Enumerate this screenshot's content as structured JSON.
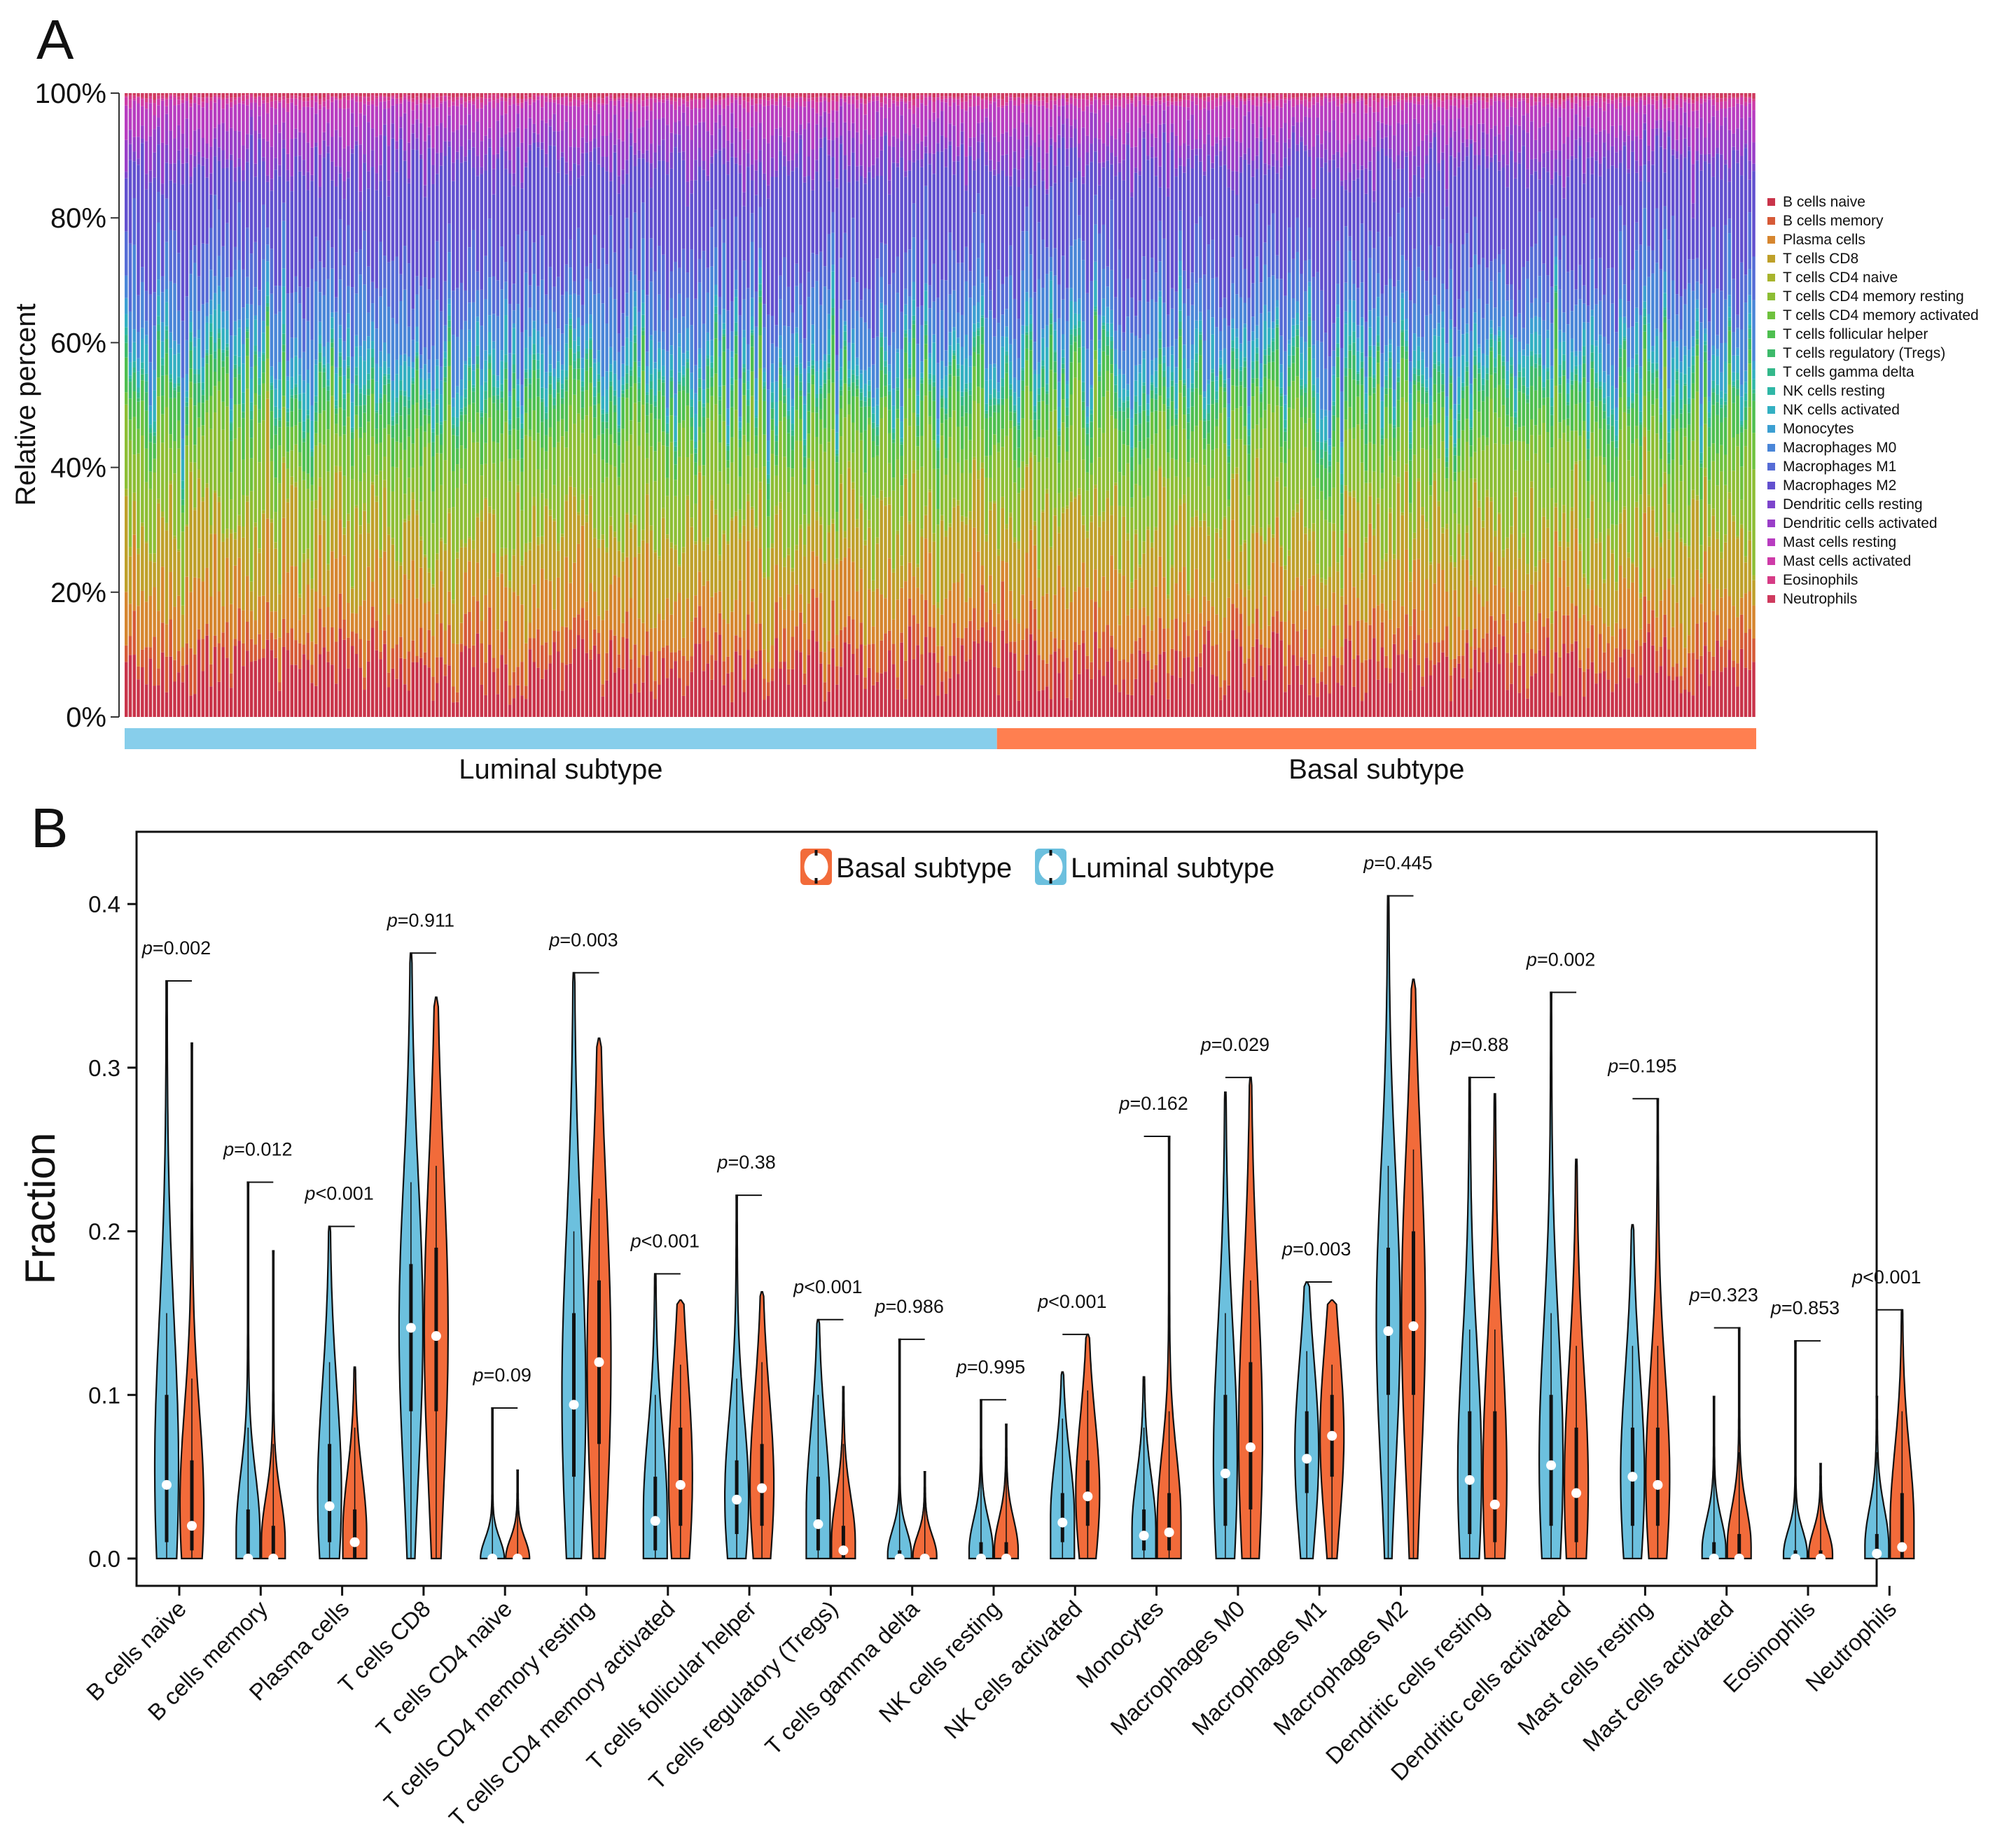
{
  "chart_data": [
    {
      "panel": "A",
      "type": "bar",
      "stacked": true,
      "ylabel": "Relative percent",
      "y_ticks": [
        "0%",
        "20%",
        "40%",
        "60%",
        "80%",
        "100%"
      ],
      "ylim": [
        0,
        100
      ],
      "n_samples": 404,
      "groups": [
        {
          "name": "Luminal subtype",
          "n": 216,
          "color": "#87CEEB"
        },
        {
          "name": "Basal subtype",
          "n": 188,
          "color": "#FF7F50"
        }
      ],
      "cell_types": [
        {
          "name": "B cells naive",
          "color": "#C9344A",
          "mean": 8
        },
        {
          "name": "B cells memory",
          "color": "#D65A37",
          "mean": 4
        },
        {
          "name": "Plasma cells",
          "color": "#D6862F",
          "mean": 8
        },
        {
          "name": "T cells CD8",
          "color": "#BFA02A",
          "mean": 10
        },
        {
          "name": "T cells CD4 naive",
          "color": "#A8B42D",
          "mean": 1
        },
        {
          "name": "T cells CD4 memory resting",
          "color": "#8DBE34",
          "mean": 12
        },
        {
          "name": "T cells CD4 memory activated",
          "color": "#6FC23E",
          "mean": 4
        },
        {
          "name": "T cells follicular helper",
          "color": "#4EBF4F",
          "mean": 4
        },
        {
          "name": "T cells regulatory (Tregs)",
          "color": "#3DBA6A",
          "mean": 2
        },
        {
          "name": "T cells gamma delta",
          "color": "#33B88A",
          "mean": 1
        },
        {
          "name": "NK cells resting",
          "color": "#2FB7A6",
          "mean": 1
        },
        {
          "name": "NK cells activated",
          "color": "#33B0C2",
          "mean": 3
        },
        {
          "name": "Monocytes",
          "color": "#3C9FD2",
          "mean": 2
        },
        {
          "name": "Macrophages M0",
          "color": "#4A86D8",
          "mean": 7
        },
        {
          "name": "Macrophages M1",
          "color": "#566CD6",
          "mean": 7
        },
        {
          "name": "Macrophages M2",
          "color": "#6250CF",
          "mean": 15
        },
        {
          "name": "Dendritic cells resting",
          "color": "#7D45CC",
          "mean": 2
        },
        {
          "name": "Dendritic cells activated",
          "color": "#9A3EC8",
          "mean": 4
        },
        {
          "name": "Mast cells resting",
          "color": "#B83CC0",
          "mean": 4
        },
        {
          "name": "Mast cells activated",
          "color": "#CE3BA8",
          "mean": 1
        },
        {
          "name": "Eosinophils",
          "color": "#D63C86",
          "mean": 0.5
        },
        {
          "name": "Neutrophils",
          "color": "#CF3A5E",
          "mean": 0.5
        }
      ]
    },
    {
      "panel": "B",
      "type": "violin",
      "ylabel": "Fraction",
      "ylim": [
        0,
        0.43
      ],
      "y_ticks": [
        "0.0",
        "0.1",
        "0.2",
        "0.3",
        "0.4"
      ],
      "legend": [
        {
          "name": "Basal subtype",
          "color": "#F26B3A"
        },
        {
          "name": "Luminal subtype",
          "color": "#6CC0DE"
        }
      ],
      "legend_position": "top-center",
      "categories": [
        {
          "name": "B cells naive",
          "p_op": "=",
          "p_val": "0.002",
          "luminal": {
            "median": 0.045,
            "max": 0.353,
            "q1": 0.01,
            "q3": 0.1
          },
          "basal": {
            "median": 0.02,
            "max": 0.315,
            "q1": 0.005,
            "q3": 0.06
          }
        },
        {
          "name": "B cells memory",
          "p_op": "=",
          "p_val": "0.012",
          "luminal": {
            "median": 0.0,
            "max": 0.23,
            "q1": 0.0,
            "q3": 0.03
          },
          "basal": {
            "median": 0.0,
            "max": 0.188,
            "q1": 0.0,
            "q3": 0.02
          }
        },
        {
          "name": "Plasma cells",
          "p_op": "<",
          "p_val": "0.001",
          "luminal": {
            "median": 0.032,
            "max": 0.203,
            "q1": 0.01,
            "q3": 0.07
          },
          "basal": {
            "median": 0.01,
            "max": 0.117,
            "q1": 0.0,
            "q3": 0.03
          }
        },
        {
          "name": "T cells CD8",
          "p_op": "=",
          "p_val": "0.911",
          "luminal": {
            "median": 0.141,
            "max": 0.37,
            "q1": 0.09,
            "q3": 0.18
          },
          "basal": {
            "median": 0.136,
            "max": 0.343,
            "q1": 0.09,
            "q3": 0.19
          }
        },
        {
          "name": "T cells CD4 naive",
          "p_op": "=",
          "p_val": "0.09",
          "luminal": {
            "median": 0.0,
            "max": 0.092,
            "q1": 0.0,
            "q3": 0.0
          },
          "basal": {
            "median": 0.0,
            "max": 0.054,
            "q1": 0.0,
            "q3": 0.0
          }
        },
        {
          "name": "T cells CD4 memory resting",
          "p_op": "=",
          "p_val": "0.003",
          "luminal": {
            "median": 0.094,
            "max": 0.358,
            "q1": 0.05,
            "q3": 0.15
          },
          "basal": {
            "median": 0.12,
            "max": 0.318,
            "q1": 0.07,
            "q3": 0.17
          }
        },
        {
          "name": "T cells CD4 memory activated",
          "p_op": "<",
          "p_val": "0.001",
          "luminal": {
            "median": 0.023,
            "max": 0.174,
            "q1": 0.005,
            "q3": 0.05
          },
          "basal": {
            "median": 0.045,
            "max": 0.158,
            "q1": 0.02,
            "q3": 0.08
          }
        },
        {
          "name": "T cells follicular helper",
          "p_op": "=",
          "p_val": "0.38",
          "luminal": {
            "median": 0.036,
            "max": 0.222,
            "q1": 0.015,
            "q3": 0.06
          },
          "basal": {
            "median": 0.043,
            "max": 0.163,
            "q1": 0.02,
            "q3": 0.07
          }
        },
        {
          "name": "T cells regulatory (Tregs)",
          "p_op": "<",
          "p_val": "0.001",
          "luminal": {
            "median": 0.021,
            "max": 0.146,
            "q1": 0.005,
            "q3": 0.05
          },
          "basal": {
            "median": 0.005,
            "max": 0.105,
            "q1": 0.0,
            "q3": 0.02
          }
        },
        {
          "name": "T cells gamma delta",
          "p_op": "=",
          "p_val": "0.986",
          "luminal": {
            "median": 0.0,
            "max": 0.134,
            "q1": 0.0,
            "q3": 0.005
          },
          "basal": {
            "median": 0.0,
            "max": 0.053,
            "q1": 0.0,
            "q3": 0.003
          }
        },
        {
          "name": "NK cells resting",
          "p_op": "=",
          "p_val": "0.995",
          "luminal": {
            "median": 0.0,
            "max": 0.097,
            "q1": 0.0,
            "q3": 0.01
          },
          "basal": {
            "median": 0.0,
            "max": 0.082,
            "q1": 0.0,
            "q3": 0.01
          }
        },
        {
          "name": "NK cells activated",
          "p_op": "<",
          "p_val": "0.001",
          "luminal": {
            "median": 0.022,
            "max": 0.114,
            "q1": 0.01,
            "q3": 0.04
          },
          "basal": {
            "median": 0.038,
            "max": 0.137,
            "q1": 0.02,
            "q3": 0.06
          }
        },
        {
          "name": "Monocytes",
          "p_op": "=",
          "p_val": "0.162",
          "luminal": {
            "median": 0.014,
            "max": 0.111,
            "q1": 0.005,
            "q3": 0.03
          },
          "basal": {
            "median": 0.016,
            "max": 0.258,
            "q1": 0.005,
            "q3": 0.04
          }
        },
        {
          "name": "Macrophages M0",
          "p_op": "=",
          "p_val": "0.029",
          "luminal": {
            "median": 0.052,
            "max": 0.285,
            "q1": 0.02,
            "q3": 0.1
          },
          "basal": {
            "median": 0.068,
            "max": 0.294,
            "q1": 0.03,
            "q3": 0.12
          }
        },
        {
          "name": "Macrophages M1",
          "p_op": "=",
          "p_val": "0.003",
          "luminal": {
            "median": 0.061,
            "max": 0.169,
            "q1": 0.04,
            "q3": 0.09
          },
          "basal": {
            "median": 0.075,
            "max": 0.158,
            "q1": 0.05,
            "q3": 0.1
          }
        },
        {
          "name": "Macrophages M2",
          "p_op": "=",
          "p_val": "0.445",
          "luminal": {
            "median": 0.139,
            "max": 0.405,
            "q1": 0.1,
            "q3": 0.19
          },
          "basal": {
            "median": 0.142,
            "max": 0.354,
            "q1": 0.1,
            "q3": 0.2
          }
        },
        {
          "name": "Dendritic cells resting",
          "p_op": "=",
          "p_val": "0.88",
          "luminal": {
            "median": 0.048,
            "max": 0.294,
            "q1": 0.015,
            "q3": 0.09
          },
          "basal": {
            "median": 0.033,
            "max": 0.284,
            "q1": 0.01,
            "q3": 0.09
          }
        },
        {
          "name": "Dendritic cells activated",
          "p_op": "=",
          "p_val": "0.002",
          "luminal": {
            "median": 0.057,
            "max": 0.346,
            "q1": 0.02,
            "q3": 0.1
          },
          "basal": {
            "median": 0.04,
            "max": 0.244,
            "q1": 0.01,
            "q3": 0.08
          }
        },
        {
          "name": "Mast cells resting",
          "p_op": "=",
          "p_val": "0.195",
          "luminal": {
            "median": 0.05,
            "max": 0.204,
            "q1": 0.02,
            "q3": 0.08
          },
          "basal": {
            "median": 0.045,
            "max": 0.281,
            "q1": 0.02,
            "q3": 0.08
          }
        },
        {
          "name": "Mast cells activated",
          "p_op": "=",
          "p_val": "0.323",
          "luminal": {
            "median": 0.0,
            "max": 0.099,
            "q1": 0.0,
            "q3": 0.01
          },
          "basal": {
            "median": 0.0,
            "max": 0.141,
            "q1": 0.0,
            "q3": 0.015
          }
        },
        {
          "name": "Eosinophils",
          "p_op": "=",
          "p_val": "0.853",
          "luminal": {
            "median": 0.0,
            "max": 0.133,
            "q1": 0.0,
            "q3": 0.005
          },
          "basal": {
            "median": 0.0,
            "max": 0.058,
            "q1": 0.0,
            "q3": 0.005
          }
        },
        {
          "name": "Neutrophils",
          "p_op": "<",
          "p_val": "0.001",
          "luminal": {
            "median": 0.003,
            "max": 0.099,
            "q1": 0.0,
            "q3": 0.015
          },
          "basal": {
            "median": 0.007,
            "max": 0.152,
            "q1": 0.0,
            "q3": 0.04
          }
        }
      ]
    }
  ],
  "panel_labels": {
    "a": "A",
    "b": "B"
  }
}
